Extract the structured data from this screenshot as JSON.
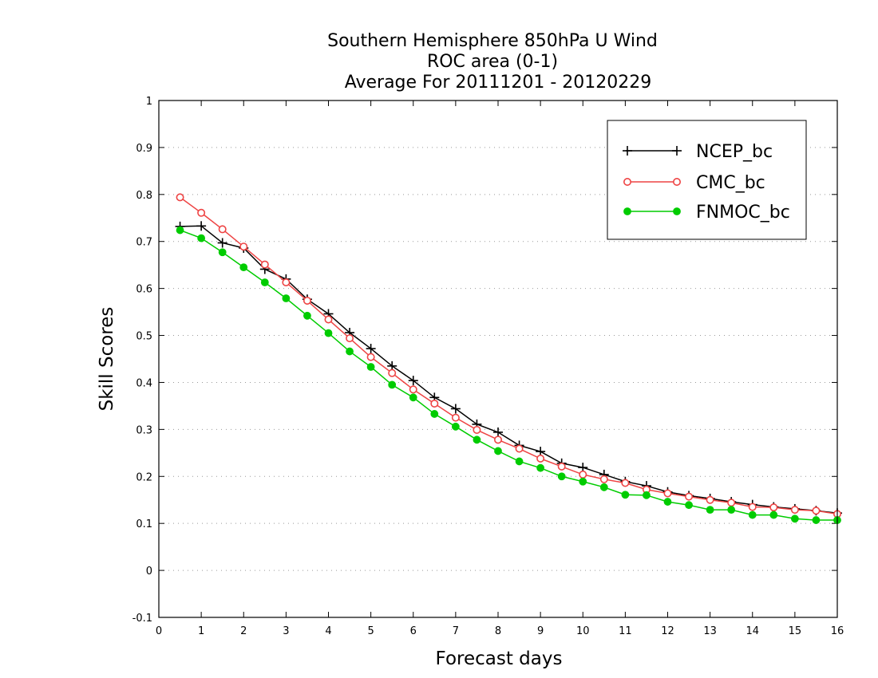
{
  "chart_data": {
    "type": "line",
    "title": [
      "Southern Hemisphere 850hPa U Wind",
      "ROC area (0-1)",
      "Average For 20111201 - 20120229"
    ],
    "xlabel": "Forecast days",
    "ylabel": "Skill Scores",
    "xlim": [
      0,
      16
    ],
    "ylim": [
      -0.1,
      1
    ],
    "x_ticks": [
      0,
      1,
      2,
      3,
      4,
      5,
      6,
      7,
      8,
      9,
      10,
      11,
      12,
      13,
      14,
      15,
      16
    ],
    "y_ticks": [
      -0.1,
      0,
      0.1,
      0.2,
      0.3,
      0.4,
      0.5,
      0.6,
      0.7,
      0.8,
      0.9,
      1
    ],
    "y_tick_labels": [
      "-0.1",
      "0",
      "0.1",
      "0.2",
      "0.3",
      "0.4",
      "0.5",
      "0.6",
      "0.7",
      "0.8",
      "0.9",
      "1"
    ],
    "grid": "horizontal dotted",
    "legend_position": "top-right",
    "x": [
      0.5,
      1,
      1.5,
      2,
      2.5,
      3,
      3.5,
      4,
      4.5,
      5,
      5.5,
      6,
      6.5,
      7,
      7.5,
      8,
      8.5,
      9,
      9.5,
      10,
      10.5,
      11,
      11.5,
      12,
      12.5,
      13,
      13.5,
      14,
      14.5,
      15,
      15.5,
      16
    ],
    "series": [
      {
        "name": "NCEP_bc",
        "color": "#000000",
        "marker": "plus",
        "values": [
          0.732,
          0.733,
          0.697,
          0.686,
          0.641,
          0.62,
          0.577,
          0.546,
          0.506,
          0.472,
          0.435,
          0.404,
          0.368,
          0.344,
          0.311,
          0.294,
          0.266,
          0.253,
          0.228,
          0.219,
          0.204,
          0.189,
          0.18,
          0.167,
          0.159,
          0.153,
          0.146,
          0.14,
          0.135,
          0.131,
          0.127,
          0.122
        ]
      },
      {
        "name": "CMC_bc",
        "color": "#ee4444",
        "marker": "open-circle",
        "values": [
          0.794,
          0.761,
          0.726,
          0.689,
          0.651,
          0.613,
          0.574,
          0.534,
          0.494,
          0.454,
          0.42,
          0.385,
          0.355,
          0.325,
          0.299,
          0.278,
          0.259,
          0.238,
          0.221,
          0.204,
          0.194,
          0.186,
          0.172,
          0.164,
          0.157,
          0.15,
          0.144,
          0.135,
          0.134,
          0.129,
          0.127,
          0.12
        ]
      },
      {
        "name": "FNMOC_bc",
        "color": "#00cc00",
        "marker": "filled-circle",
        "values": [
          0.724,
          0.707,
          0.677,
          0.645,
          0.613,
          0.579,
          0.542,
          0.505,
          0.466,
          0.433,
          0.395,
          0.368,
          0.333,
          0.306,
          0.278,
          0.254,
          0.232,
          0.218,
          0.2,
          0.189,
          0.177,
          0.161,
          0.16,
          0.146,
          0.139,
          0.129,
          0.129,
          0.118,
          0.118,
          0.11,
          0.107,
          0.107
        ]
      }
    ]
  }
}
